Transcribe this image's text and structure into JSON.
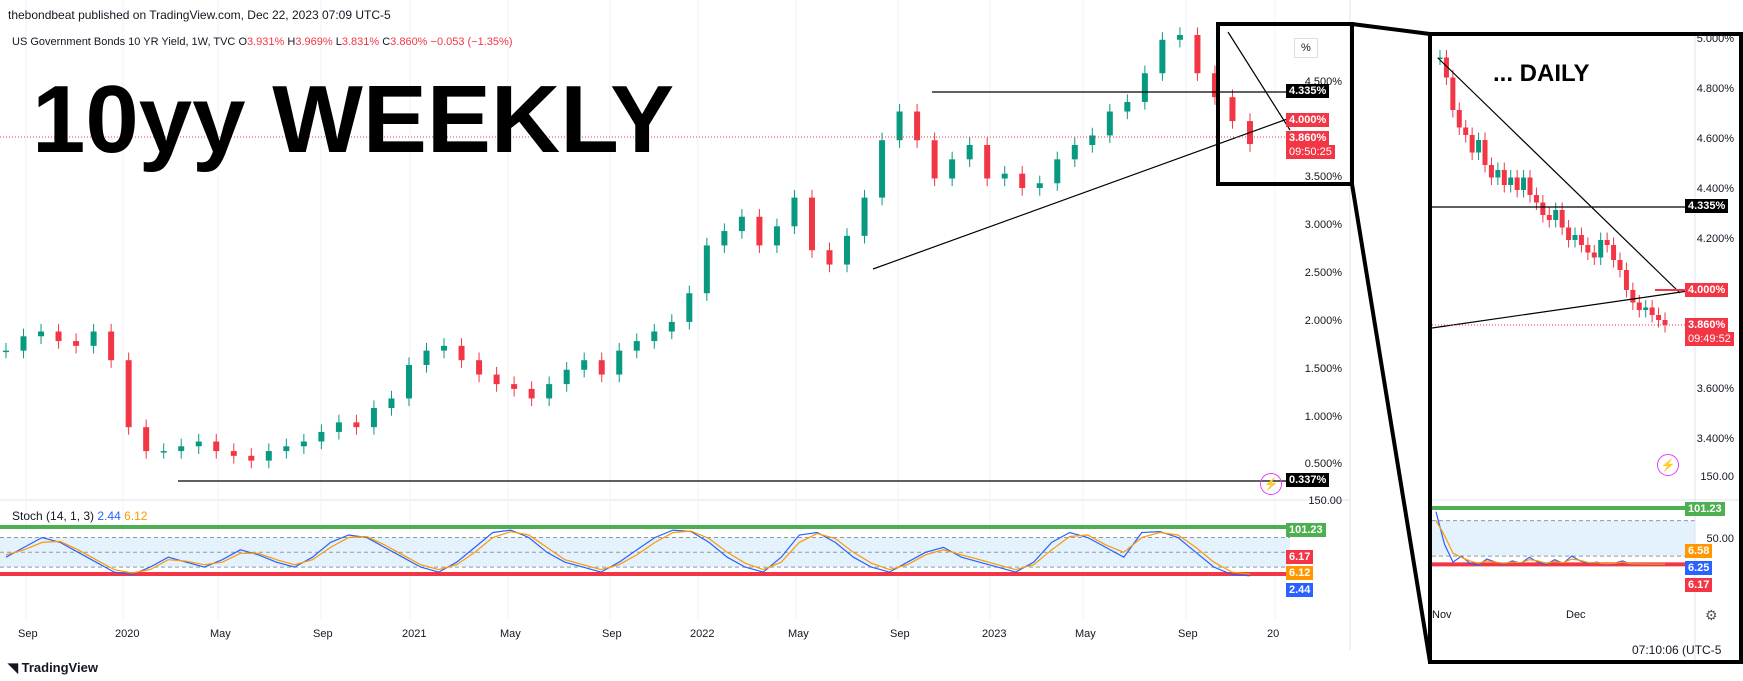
{
  "header": {
    "published": "thebondbeat published on TradingView.com, Dec 22, 2023 07:09 UTC-5",
    "symbol": "US Government Bonds 10 YR Yield, 1W, TVC",
    "ohlc": {
      "o_label": "O",
      "o": "3.931%",
      "h_label": "H",
      "h": "3.969%",
      "l_label": "L",
      "l": "3.831%",
      "c_label": "C",
      "c": "3.860%",
      "chg": "−0.053 (−1.35%)"
    },
    "pct_button": "%"
  },
  "annotations": {
    "weekly_title": "10yy WEEKLY",
    "daily_title": "... DAILY"
  },
  "weekly": {
    "y_ticks": [
      "4.500%",
      "3.500%",
      "3.000%",
      "2.500%",
      "2.000%",
      "1.500%",
      "1.000%",
      "0.500%"
    ],
    "x_ticks": [
      "Sep",
      "2020",
      "May",
      "Sep",
      "2021",
      "May",
      "Sep",
      "2022",
      "May",
      "Sep",
      "2023",
      "May",
      "Sep",
      "20"
    ],
    "price_tags": {
      "resistance": "4.335%",
      "trend": "4.000%",
      "last": "3.860%",
      "countdown": "09:50:25",
      "low": "0.337%"
    },
    "stoch": {
      "label": "Stoch (14, 1, 3)",
      "k": "2.44",
      "d": "6.12",
      "scale_top": "150.00",
      "tags": {
        "upper": "101.23",
        "lower": "6.17",
        "d": "6.12",
        "k": "2.44"
      }
    }
  },
  "daily": {
    "y_ticks": [
      "5.000%",
      "4.800%",
      "4.600%",
      "4.400%",
      "4.200%",
      "3.600%",
      "3.400%"
    ],
    "x_ticks": [
      "Nov",
      "Dec"
    ],
    "price_tags": {
      "resistance": "4.335%",
      "trend": "4.000%",
      "last": "3.860%",
      "countdown": "09:49:52"
    },
    "stoch": {
      "scale_top": "150.00",
      "tick": "50.00",
      "tags": {
        "upper": "101.23",
        "a": "6.58",
        "b": "6.25",
        "lower": "6.17"
      }
    },
    "time": "07:10:06 (UTC-5"
  },
  "footer": {
    "logo_text": "TradingView"
  },
  "colors": {
    "up": "#089981",
    "down": "#f23645",
    "stoch_k": "#2962ff",
    "stoch_d": "#ff9800",
    "band_fill": "#e3f2fd",
    "upper_line": "#4caf50",
    "lower_line": "#f23645"
  },
  "chart_data": [
    {
      "type": "candlestick",
      "title": "US Government Bonds 10 YR Yield, 1W, TVC",
      "x_range": [
        "2019-08",
        "2024-01"
      ],
      "ylim": [
        0.2,
        5.2
      ],
      "unit": "%",
      "series": [
        {
          "values": [
            1.7,
            1.85,
            1.9,
            1.8,
            1.75,
            1.9,
            1.6,
            0.9,
            0.65,
            0.65,
            0.7,
            0.75,
            0.65,
            0.6,
            0.55,
            0.65,
            0.7,
            0.75,
            0.85,
            0.95,
            0.9,
            1.1,
            1.2,
            1.55,
            1.7,
            1.75,
            1.6,
            1.45,
            1.35,
            1.3,
            1.2,
            1.35,
            1.5,
            1.6,
            1.45,
            1.7,
            1.8,
            1.9,
            2.0,
            2.3,
            2.8,
            2.95,
            3.1,
            2.8,
            3.0,
            3.3,
            2.75,
            2.6,
            2.9,
            3.3,
            3.9,
            4.2,
            3.9,
            3.5,
            3.7,
            3.85,
            3.5,
            3.55,
            3.4,
            3.45,
            3.7,
            3.85,
            3.95,
            4.2,
            4.3,
            4.6,
            4.95,
            5.0,
            4.6,
            4.35,
            4.1,
            3.86
          ]
        }
      ],
      "lines": [
        {
          "name": "",
          "level": 4.335
        },
        {
          "name": "",
          "level": 0.337
        }
      ]
    },
    {
      "type": "line",
      "title": "Stoch (14, 1, 3)",
      "ylim": [
        0,
        150
      ],
      "series": [
        {
          "name": "",
          "values": [
            40,
            60,
            80,
            70,
            50,
            30,
            10,
            5,
            20,
            40,
            30,
            20,
            35,
            55,
            45,
            30,
            20,
            40,
            70,
            85,
            80,
            60,
            40,
            20,
            10,
            30,
            60,
            90,
            95,
            80,
            50,
            30,
            20,
            10,
            30,
            55,
            80,
            95,
            92,
            70,
            40,
            20,
            10,
            40,
            85,
            90,
            70,
            40,
            20,
            10,
            30,
            50,
            60,
            40,
            30,
            20,
            10,
            30,
            70,
            90,
            80,
            60,
            40,
            90,
            92,
            80,
            50,
            20,
            5,
            2.44
          ]
        },
        {
          "name": "",
          "values": [
            45,
            55,
            70,
            72,
            55,
            35,
            15,
            8,
            15,
            35,
            32,
            25,
            30,
            48,
            48,
            35,
            25,
            35,
            60,
            80,
            82,
            65,
            45,
            25,
            15,
            25,
            50,
            80,
            92,
            85,
            60,
            35,
            25,
            15,
            25,
            45,
            70,
            90,
            93,
            78,
            50,
            28,
            15,
            30,
            70,
            88,
            78,
            50,
            28,
            15,
            25,
            45,
            55,
            45,
            35,
            25,
            15,
            25,
            55,
            82,
            85,
            65,
            50,
            80,
            90,
            85,
            60,
            30,
            10,
            6.12
          ]
        }
      ],
      "lines": [
        {
          "name": "",
          "level": 101.23
        },
        {
          "name": "",
          "level": 6.17
        }
      ]
    }
  ]
}
